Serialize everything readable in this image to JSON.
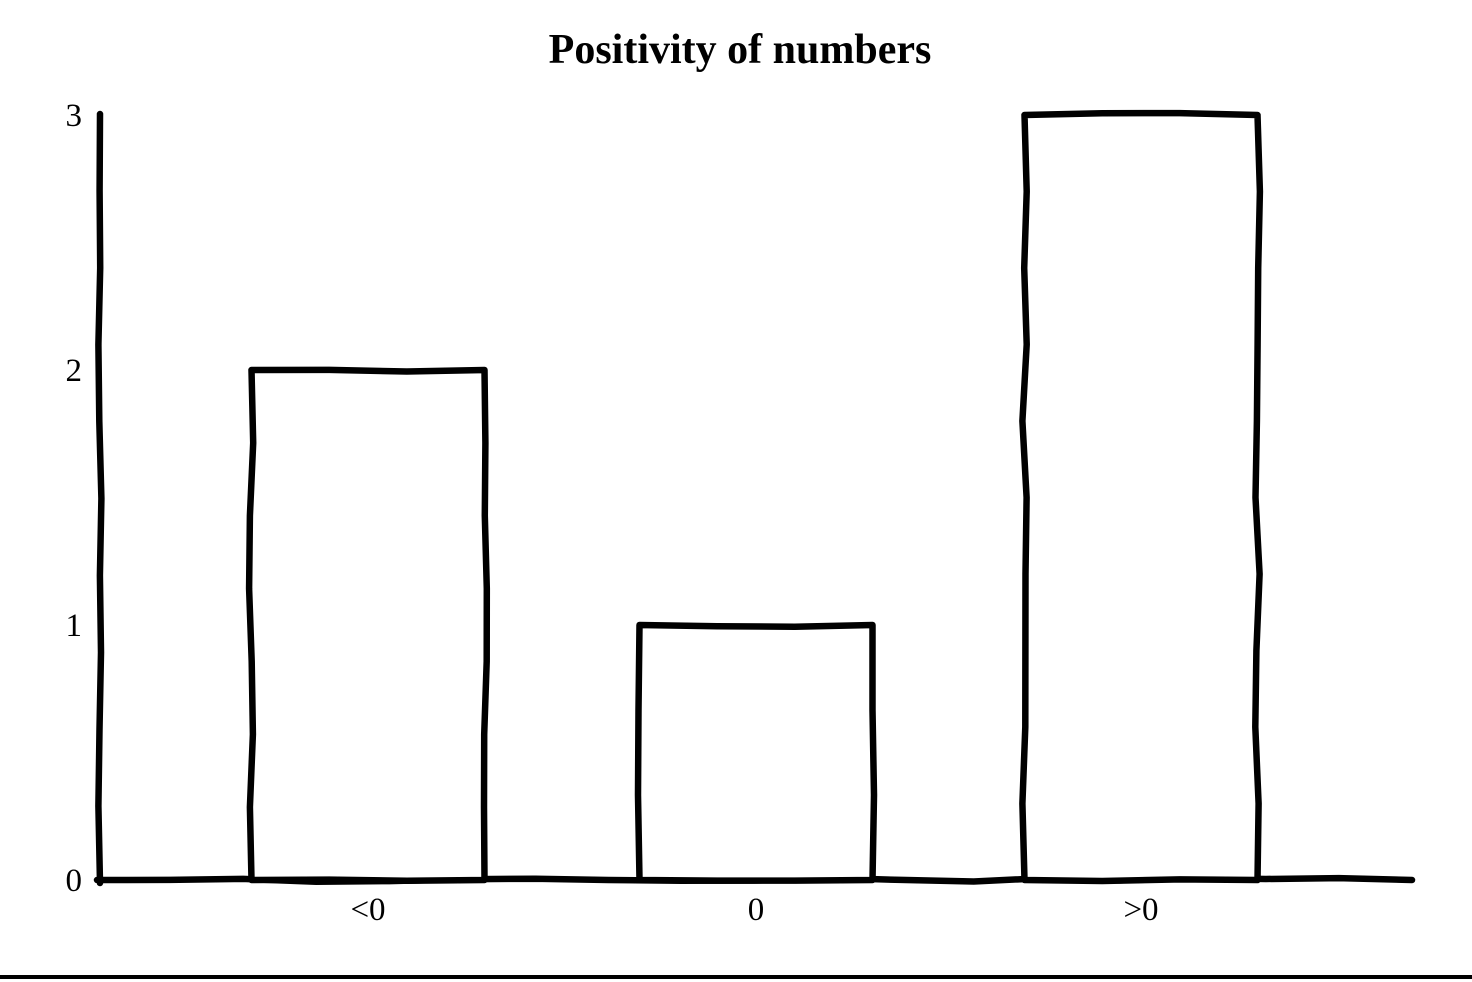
{
  "page": {
    "background_color": "#ffffff",
    "rule_color": "#000000"
  },
  "chart_data": {
    "type": "bar",
    "title": "Positivity of numbers",
    "categories": [
      "<0",
      "0",
      ">0"
    ],
    "values": [
      2,
      1,
      3
    ],
    "yticks": [
      "0",
      "1",
      "2",
      "3"
    ],
    "ylim": [
      0,
      3
    ],
    "xlabel": "",
    "ylabel": "",
    "grid": false,
    "legend": "none",
    "style": "hand-drawn-outline",
    "bar_fill_color": "#ffffff",
    "stroke_color": "#000000"
  }
}
